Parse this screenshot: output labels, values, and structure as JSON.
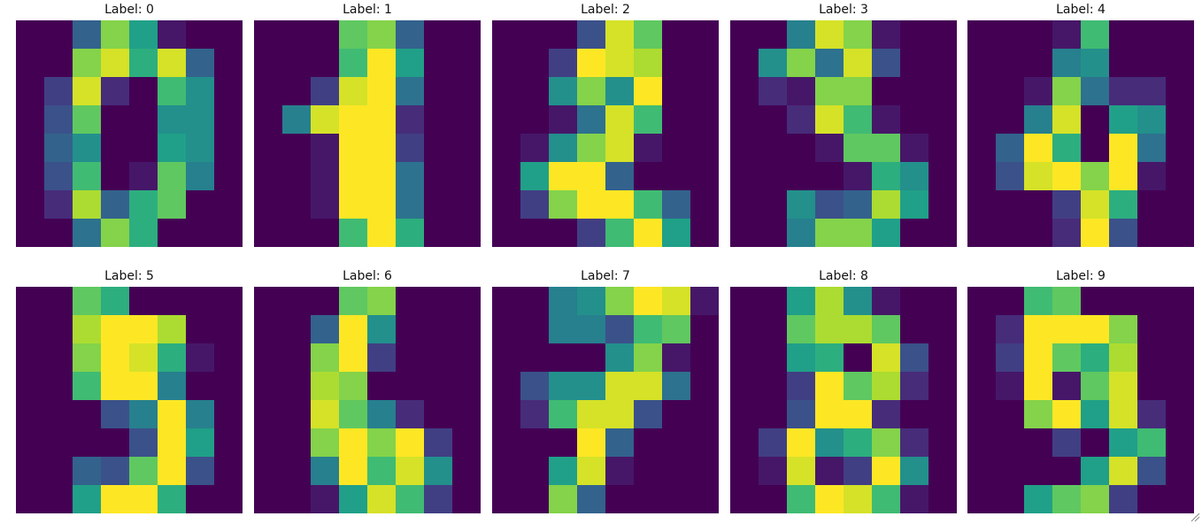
{
  "chart_data": [
    {
      "type": "heatmap",
      "title": "Label: 0",
      "z": [
        [
          0,
          0,
          5,
          13,
          9,
          1,
          0,
          0
        ],
        [
          0,
          0,
          13,
          15,
          10,
          15,
          5,
          0
        ],
        [
          0,
          3,
          15,
          2,
          0,
          11,
          8,
          0
        ],
        [
          0,
          4,
          12,
          0,
          0,
          8,
          8,
          0
        ],
        [
          0,
          5,
          8,
          0,
          0,
          9,
          8,
          0
        ],
        [
          0,
          4,
          11,
          0,
          1,
          12,
          7,
          0
        ],
        [
          0,
          2,
          14,
          5,
          10,
          12,
          0,
          0
        ],
        [
          0,
          0,
          6,
          13,
          10,
          0,
          0,
          0
        ]
      ]
    },
    {
      "type": "heatmap",
      "title": "Label: 1",
      "z": [
        [
          0,
          0,
          0,
          12,
          13,
          5,
          0,
          0
        ],
        [
          0,
          0,
          0,
          11,
          16,
          9,
          0,
          0
        ],
        [
          0,
          0,
          3,
          15,
          16,
          6,
          0,
          0
        ],
        [
          0,
          7,
          15,
          16,
          16,
          2,
          0,
          0
        ],
        [
          0,
          0,
          1,
          16,
          16,
          3,
          0,
          0
        ],
        [
          0,
          0,
          1,
          16,
          16,
          6,
          0,
          0
        ],
        [
          0,
          0,
          1,
          16,
          16,
          6,
          0,
          0
        ],
        [
          0,
          0,
          0,
          11,
          16,
          10,
          0,
          0
        ]
      ]
    },
    {
      "type": "heatmap",
      "title": "Label: 2",
      "z": [
        [
          0,
          0,
          0,
          4,
          15,
          12,
          0,
          0
        ],
        [
          0,
          0,
          3,
          16,
          15,
          14,
          0,
          0
        ],
        [
          0,
          0,
          8,
          13,
          8,
          16,
          0,
          0
        ],
        [
          0,
          0,
          1,
          6,
          15,
          11,
          0,
          0
        ],
        [
          0,
          1,
          8,
          13,
          15,
          1,
          0,
          0
        ],
        [
          0,
          9,
          16,
          16,
          5,
          0,
          0,
          0
        ],
        [
          0,
          3,
          13,
          16,
          16,
          11,
          5,
          0
        ],
        [
          0,
          0,
          0,
          3,
          11,
          16,
          9,
          0
        ]
      ]
    },
    {
      "type": "heatmap",
      "title": "Label: 3",
      "z": [
        [
          0,
          0,
          7,
          15,
          13,
          1,
          0,
          0
        ],
        [
          0,
          8,
          13,
          6,
          15,
          4,
          0,
          0
        ],
        [
          0,
          2,
          1,
          13,
          13,
          0,
          0,
          0
        ],
        [
          0,
          0,
          2,
          15,
          11,
          1,
          0,
          0
        ],
        [
          0,
          0,
          0,
          1,
          12,
          12,
          1,
          0
        ],
        [
          0,
          0,
          0,
          0,
          1,
          10,
          8,
          0
        ],
        [
          0,
          0,
          8,
          4,
          5,
          14,
          9,
          0
        ],
        [
          0,
          0,
          7,
          13,
          13,
          9,
          0,
          0
        ]
      ]
    },
    {
      "type": "heatmap",
      "title": "Label: 4",
      "z": [
        [
          0,
          0,
          0,
          1,
          11,
          0,
          0,
          0
        ],
        [
          0,
          0,
          0,
          7,
          8,
          0,
          0,
          0
        ],
        [
          0,
          0,
          1,
          13,
          6,
          2,
          2,
          0
        ],
        [
          0,
          0,
          7,
          15,
          0,
          9,
          8,
          0
        ],
        [
          0,
          5,
          16,
          10,
          0,
          16,
          6,
          0
        ],
        [
          0,
          4,
          15,
          16,
          13,
          16,
          1,
          0
        ],
        [
          0,
          0,
          0,
          3,
          15,
          10,
          0,
          0
        ],
        [
          0,
          0,
          0,
          2,
          16,
          4,
          0,
          0
        ]
      ]
    },
    {
      "type": "heatmap",
      "title": "Label: 5",
      "z": [
        [
          0,
          0,
          12,
          10,
          0,
          0,
          0,
          0
        ],
        [
          0,
          0,
          14,
          16,
          16,
          14,
          0,
          0
        ],
        [
          0,
          0,
          13,
          16,
          15,
          10,
          1,
          0
        ],
        [
          0,
          0,
          11,
          16,
          16,
          7,
          0,
          0
        ],
        [
          0,
          0,
          0,
          4,
          7,
          16,
          7,
          0
        ],
        [
          0,
          0,
          0,
          0,
          4,
          16,
          9,
          0
        ],
        [
          0,
          0,
          5,
          4,
          12,
          16,
          4,
          0
        ],
        [
          0,
          0,
          9,
          16,
          16,
          10,
          0,
          0
        ]
      ]
    },
    {
      "type": "heatmap",
      "title": "Label: 6",
      "z": [
        [
          0,
          0,
          0,
          12,
          13,
          0,
          0,
          0
        ],
        [
          0,
          0,
          5,
          16,
          8,
          0,
          0,
          0
        ],
        [
          0,
          0,
          13,
          16,
          3,
          0,
          0,
          0
        ],
        [
          0,
          0,
          14,
          13,
          0,
          0,
          0,
          0
        ],
        [
          0,
          0,
          15,
          12,
          7,
          2,
          0,
          0
        ],
        [
          0,
          0,
          13,
          16,
          13,
          16,
          3,
          0
        ],
        [
          0,
          0,
          7,
          16,
          11,
          15,
          8,
          0
        ],
        [
          0,
          0,
          1,
          9,
          15,
          11,
          3,
          0
        ]
      ]
    },
    {
      "type": "heatmap",
      "title": "Label: 7",
      "z": [
        [
          0,
          0,
          7,
          8,
          13,
          16,
          15,
          1
        ],
        [
          0,
          0,
          7,
          7,
          4,
          11,
          12,
          0
        ],
        [
          0,
          0,
          0,
          0,
          8,
          13,
          1,
          0
        ],
        [
          0,
          4,
          8,
          8,
          15,
          15,
          6,
          0
        ],
        [
          0,
          2,
          11,
          15,
          15,
          4,
          0,
          0
        ],
        [
          0,
          0,
          0,
          16,
          5,
          0,
          0,
          0
        ],
        [
          0,
          0,
          9,
          15,
          1,
          0,
          0,
          0
        ],
        [
          0,
          0,
          13,
          5,
          0,
          0,
          0,
          0
        ]
      ]
    },
    {
      "type": "heatmap",
      "title": "Label: 8",
      "z": [
        [
          0,
          0,
          9,
          14,
          8,
          1,
          0,
          0
        ],
        [
          0,
          0,
          12,
          14,
          14,
          12,
          0,
          0
        ],
        [
          0,
          0,
          9,
          10,
          0,
          15,
          4,
          0
        ],
        [
          0,
          0,
          3,
          16,
          12,
          14,
          2,
          0
        ],
        [
          0,
          0,
          4,
          16,
          16,
          2,
          0,
          0
        ],
        [
          0,
          3,
          16,
          8,
          10,
          13,
          2,
          0
        ],
        [
          0,
          1,
          15,
          1,
          3,
          16,
          8,
          0
        ],
        [
          0,
          0,
          11,
          16,
          15,
          11,
          1,
          0
        ]
      ]
    },
    {
      "type": "heatmap",
      "title": "Label: 9",
      "z": [
        [
          0,
          0,
          11,
          12,
          0,
          0,
          0,
          0
        ],
        [
          0,
          2,
          16,
          16,
          16,
          13,
          0,
          0
        ],
        [
          0,
          3,
          16,
          12,
          10,
          14,
          0,
          0
        ],
        [
          0,
          1,
          16,
          1,
          12,
          15,
          0,
          0
        ],
        [
          0,
          0,
          13,
          16,
          9,
          15,
          2,
          0
        ],
        [
          0,
          0,
          0,
          3,
          0,
          9,
          11,
          0
        ],
        [
          0,
          0,
          0,
          0,
          9,
          15,
          4,
          0
        ],
        [
          0,
          0,
          9,
          12,
          13,
          3,
          0,
          0
        ]
      ]
    }
  ],
  "colormap": {
    "name": "viridis",
    "stops": [
      "#440154",
      "#482878",
      "#3e4989",
      "#31688e",
      "#26828e",
      "#1f9e89",
      "#35b779",
      "#6ece58",
      "#b5de2b",
      "#fde725"
    ]
  },
  "value_range": [
    0,
    16
  ],
  "icons": {
    "resize": "resize-grip-icon"
  }
}
